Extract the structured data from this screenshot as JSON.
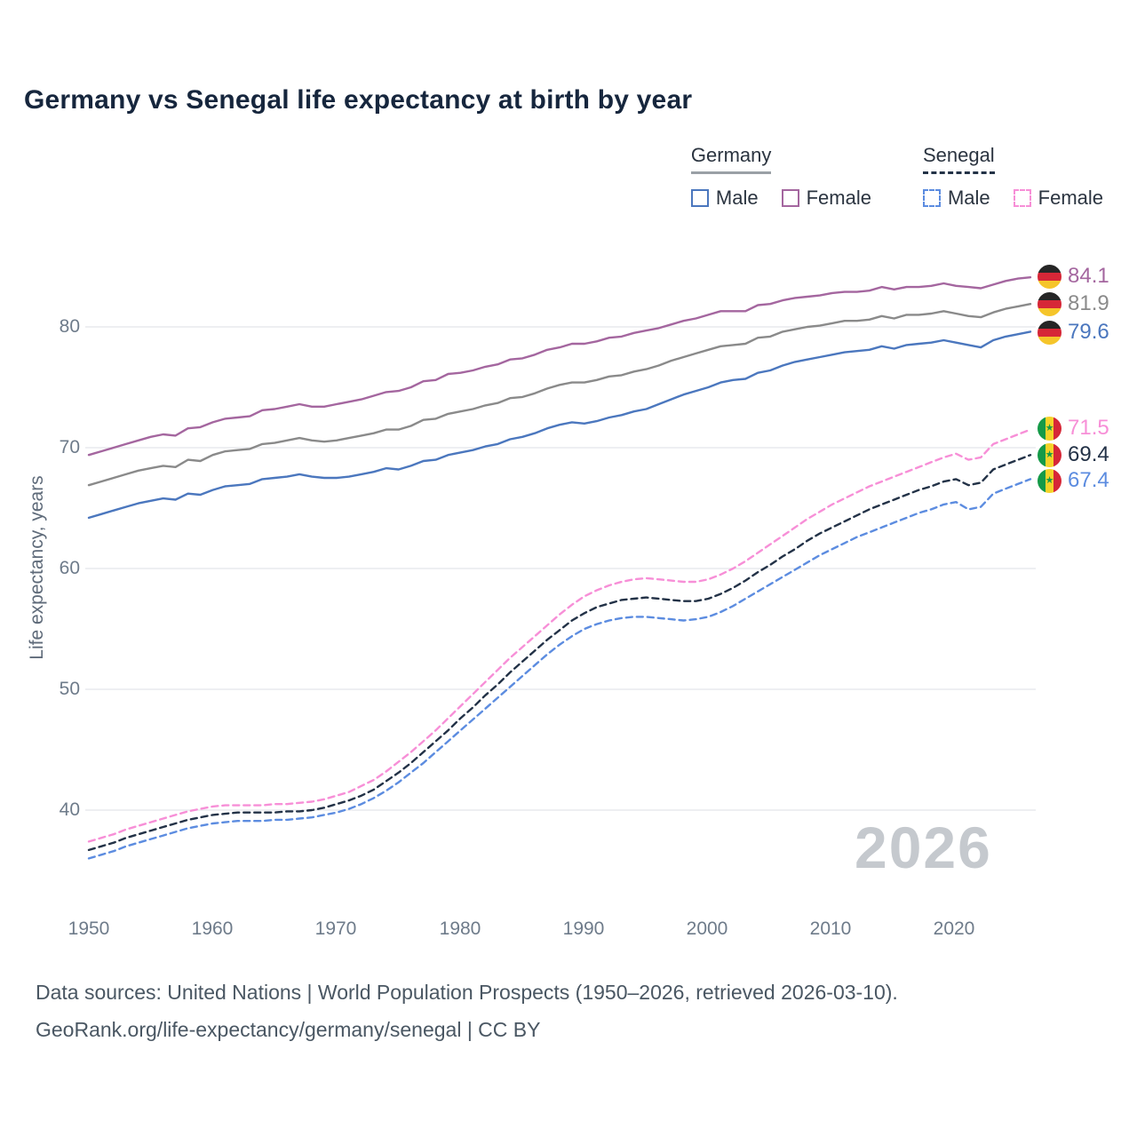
{
  "title": "Germany vs Senegal life expectancy at birth by year",
  "ylabel": "Life expectancy, years",
  "watermark": "2026",
  "legend": {
    "groups": [
      {
        "label": "Germany",
        "rule_color": "#9aa0a6",
        "rule_style": "solid",
        "items": [
          {
            "label": "Male",
            "color": "#4b77be",
            "dash": false
          },
          {
            "label": "Female",
            "color": "#a4669f",
            "dash": false
          }
        ]
      },
      {
        "label": "Senegal",
        "rule_color": "#233247",
        "rule_style": "dashed",
        "items": [
          {
            "label": "Male",
            "color": "#5c8ce0",
            "dash": true
          },
          {
            "label": "Female",
            "color": "#f78fd7",
            "dash": true
          }
        ]
      }
    ]
  },
  "end_labels": [
    {
      "value": "84.1",
      "flag": "germany",
      "color": "#a4669f"
    },
    {
      "value": "81.9",
      "flag": "germany",
      "color": "#8a8a8a"
    },
    {
      "value": "79.6",
      "flag": "germany",
      "color": "#4b77be"
    },
    {
      "value": "71.5",
      "flag": "senegal",
      "color": "#f78fd7"
    },
    {
      "value": "69.4",
      "flag": "senegal",
      "color": "#233247"
    },
    {
      "value": "67.4",
      "flag": "senegal",
      "color": "#5c8ce0"
    }
  ],
  "footer": {
    "line1": "Data sources: United Nations | World Population Prospects (1950–2026, retrieved 2026-03-10).",
    "line2": "GeoRank.org/life-expectancy/germany/senegal | CC BY"
  },
  "chart_data": {
    "type": "line",
    "title": "Germany vs Senegal life expectancy at birth by year",
    "xlabel": "",
    "ylabel": "Life expectancy, years",
    "x_start": 1950,
    "x_end": 2026,
    "x_step": 1,
    "x_ticks": [
      1950,
      1960,
      1970,
      1980,
      1990,
      2000,
      2010,
      2020
    ],
    "y_ticks": [
      40,
      50,
      60,
      70,
      80
    ],
    "ylim": [
      34,
      86
    ],
    "grid": "horizontal",
    "legend_position": "top-right",
    "series": [
      {
        "name": "Germany Female",
        "color": "#a4669f",
        "dash": false,
        "end_value": 84.1,
        "values": [
          69.4,
          69.7,
          70.0,
          70.3,
          70.6,
          70.9,
          71.1,
          71.0,
          71.6,
          71.7,
          72.1,
          72.4,
          72.5,
          72.6,
          73.1,
          73.2,
          73.4,
          73.6,
          73.4,
          73.4,
          73.6,
          73.8,
          74.0,
          74.3,
          74.6,
          74.7,
          75.0,
          75.5,
          75.6,
          76.1,
          76.2,
          76.4,
          76.7,
          76.9,
          77.3,
          77.4,
          77.7,
          78.1,
          78.3,
          78.6,
          78.6,
          78.8,
          79.1,
          79.2,
          79.5,
          79.7,
          79.9,
          80.2,
          80.5,
          80.7,
          81.0,
          81.3,
          81.3,
          81.3,
          81.8,
          81.9,
          82.2,
          82.4,
          82.5,
          82.6,
          82.8,
          82.9,
          82.9,
          83.0,
          83.3,
          83.1,
          83.3,
          83.3,
          83.4,
          83.6,
          83.4,
          83.3,
          83.2,
          83.5,
          83.8,
          84.0,
          84.1
        ]
      },
      {
        "name": "Germany Both sexes",
        "color": "#8a8a8a",
        "dash": false,
        "end_value": 81.9,
        "values": [
          66.9,
          67.2,
          67.5,
          67.8,
          68.1,
          68.3,
          68.5,
          68.4,
          69.0,
          68.9,
          69.4,
          69.7,
          69.8,
          69.9,
          70.3,
          70.4,
          70.6,
          70.8,
          70.6,
          70.5,
          70.6,
          70.8,
          71.0,
          71.2,
          71.5,
          71.5,
          71.8,
          72.3,
          72.4,
          72.8,
          73.0,
          73.2,
          73.5,
          73.7,
          74.1,
          74.2,
          74.5,
          74.9,
          75.2,
          75.4,
          75.4,
          75.6,
          75.9,
          76.0,
          76.3,
          76.5,
          76.8,
          77.2,
          77.5,
          77.8,
          78.1,
          78.4,
          78.5,
          78.6,
          79.1,
          79.2,
          79.6,
          79.8,
          80.0,
          80.1,
          80.3,
          80.5,
          80.5,
          80.6,
          80.9,
          80.7,
          81.0,
          81.0,
          81.1,
          81.3,
          81.1,
          80.9,
          80.8,
          81.2,
          81.5,
          81.7,
          81.9
        ]
      },
      {
        "name": "Germany Male",
        "color": "#4b77be",
        "dash": false,
        "end_value": 79.6,
        "values": [
          64.2,
          64.5,
          64.8,
          65.1,
          65.4,
          65.6,
          65.8,
          65.7,
          66.2,
          66.1,
          66.5,
          66.8,
          66.9,
          67.0,
          67.4,
          67.5,
          67.6,
          67.8,
          67.6,
          67.5,
          67.5,
          67.6,
          67.8,
          68.0,
          68.3,
          68.2,
          68.5,
          68.9,
          69.0,
          69.4,
          69.6,
          69.8,
          70.1,
          70.3,
          70.7,
          70.9,
          71.2,
          71.6,
          71.9,
          72.1,
          72.0,
          72.2,
          72.5,
          72.7,
          73.0,
          73.2,
          73.6,
          74.0,
          74.4,
          74.7,
          75.0,
          75.4,
          75.6,
          75.7,
          76.2,
          76.4,
          76.8,
          77.1,
          77.3,
          77.5,
          77.7,
          77.9,
          78.0,
          78.1,
          78.4,
          78.2,
          78.5,
          78.6,
          78.7,
          78.9,
          78.7,
          78.5,
          78.3,
          78.9,
          79.2,
          79.4,
          79.6
        ]
      },
      {
        "name": "Senegal Female",
        "color": "#f78fd7",
        "dash": true,
        "end_value": 71.5,
        "values": [
          37.4,
          37.7,
          38.0,
          38.4,
          38.7,
          39.0,
          39.3,
          39.6,
          39.9,
          40.1,
          40.3,
          40.4,
          40.4,
          40.4,
          40.4,
          40.5,
          40.5,
          40.6,
          40.7,
          40.9,
          41.2,
          41.5,
          42.0,
          42.5,
          43.2,
          44.0,
          44.8,
          45.7,
          46.6,
          47.6,
          48.6,
          49.6,
          50.6,
          51.6,
          52.6,
          53.5,
          54.4,
          55.3,
          56.2,
          57.0,
          57.7,
          58.2,
          58.6,
          58.9,
          59.1,
          59.2,
          59.1,
          59.0,
          58.9,
          58.9,
          59.1,
          59.5,
          60.0,
          60.6,
          61.3,
          62.0,
          62.7,
          63.4,
          64.1,
          64.7,
          65.3,
          65.8,
          66.3,
          66.8,
          67.2,
          67.6,
          68.0,
          68.4,
          68.8,
          69.2,
          69.5,
          69.0,
          69.2,
          70.3,
          70.7,
          71.1,
          71.5
        ]
      },
      {
        "name": "Senegal Both sexes",
        "color": "#233247",
        "dash": true,
        "end_value": 69.4,
        "values": [
          36.7,
          37.0,
          37.3,
          37.7,
          38.0,
          38.3,
          38.6,
          38.9,
          39.2,
          39.4,
          39.6,
          39.7,
          39.8,
          39.8,
          39.8,
          39.8,
          39.9,
          39.9,
          40.0,
          40.2,
          40.5,
          40.8,
          41.2,
          41.7,
          42.4,
          43.1,
          43.9,
          44.8,
          45.7,
          46.6,
          47.6,
          48.5,
          49.5,
          50.4,
          51.4,
          52.3,
          53.2,
          54.1,
          54.9,
          55.7,
          56.3,
          56.8,
          57.1,
          57.4,
          57.5,
          57.6,
          57.5,
          57.4,
          57.3,
          57.3,
          57.5,
          57.9,
          58.4,
          59.0,
          59.7,
          60.3,
          61.0,
          61.6,
          62.3,
          62.9,
          63.4,
          63.9,
          64.4,
          64.9,
          65.3,
          65.7,
          66.1,
          66.5,
          66.8,
          67.2,
          67.4,
          66.9,
          67.1,
          68.2,
          68.6,
          69.0,
          69.4
        ]
      },
      {
        "name": "Senegal Male",
        "color": "#5c8ce0",
        "dash": true,
        "end_value": 67.4,
        "values": [
          36.0,
          36.3,
          36.6,
          37.0,
          37.3,
          37.6,
          37.9,
          38.2,
          38.5,
          38.7,
          38.9,
          39.0,
          39.1,
          39.1,
          39.1,
          39.2,
          39.2,
          39.3,
          39.4,
          39.6,
          39.8,
          40.1,
          40.5,
          41.0,
          41.6,
          42.3,
          43.1,
          43.9,
          44.8,
          45.7,
          46.6,
          47.5,
          48.4,
          49.3,
          50.2,
          51.1,
          52.0,
          52.9,
          53.7,
          54.4,
          55.0,
          55.4,
          55.7,
          55.9,
          56.0,
          56.0,
          55.9,
          55.8,
          55.7,
          55.8,
          56.0,
          56.4,
          56.9,
          57.5,
          58.1,
          58.7,
          59.3,
          59.9,
          60.5,
          61.1,
          61.6,
          62.1,
          62.6,
          63.0,
          63.4,
          63.8,
          64.2,
          64.6,
          64.9,
          65.3,
          65.5,
          64.9,
          65.1,
          66.2,
          66.6,
          67.0,
          67.4
        ]
      }
    ]
  }
}
